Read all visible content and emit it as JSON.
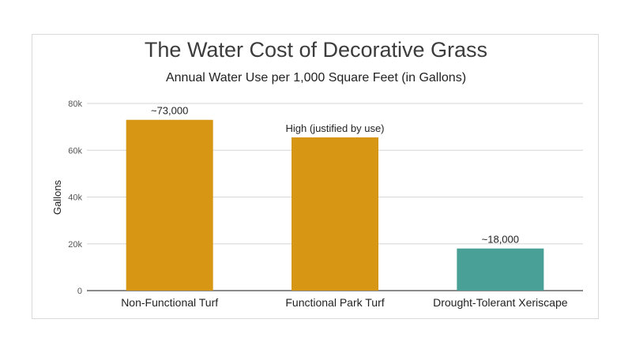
{
  "chart_data": {
    "type": "bar",
    "title": "The Water Cost of Decorative Grass",
    "subtitle": "Annual Water Use per 1,000 Square Feet (in Gallons)",
    "xlabel": "",
    "ylabel": "Gallons",
    "ylim": [
      0,
      80000
    ],
    "yticks": [
      0,
      20000,
      40000,
      60000,
      80000
    ],
    "ytick_labels": [
      "0",
      "20k",
      "40k",
      "60k",
      "80k"
    ],
    "grid": true,
    "legend": "none",
    "categories": [
      "Non-Functional Turf",
      "Functional Park Turf",
      "Drought-Tolerant Xeriscape"
    ],
    "values": [
      73000,
      65500,
      18000
    ],
    "data_labels": [
      "~73,000",
      "High (justified by use)",
      "~18,000"
    ],
    "colors": [
      "#d79614",
      "#d79614",
      "#48a096"
    ]
  }
}
